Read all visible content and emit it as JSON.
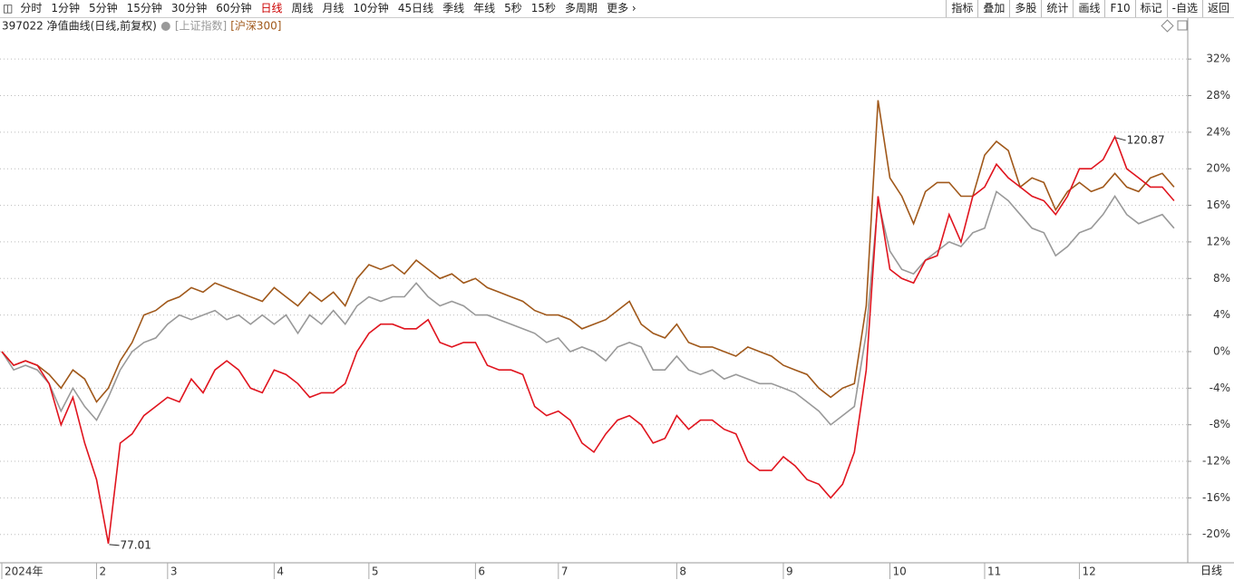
{
  "toolbar": {
    "periods": [
      "分时",
      "1分钟",
      "5分钟",
      "15分钟",
      "30分钟",
      "60分钟",
      "日线",
      "周线",
      "月线",
      "10分钟",
      "45日线",
      "季线",
      "年线",
      "5秒",
      "15秒",
      "多周期",
      "更多"
    ],
    "tools": [
      "指标",
      "叠加",
      "多股",
      "统计",
      "画线",
      "F10",
      "标记",
      "-自选",
      "返回"
    ],
    "period_label": "日线"
  },
  "chart_data": {
    "type": "line",
    "categories": [
      "2024年",
      null,
      null,
      null,
      null,
      null,
      null,
      null,
      "2",
      null,
      null,
      null,
      null,
      null,
      "3",
      null,
      null,
      null,
      null,
      null,
      null,
      null,
      null,
      "4",
      null,
      null,
      null,
      null,
      null,
      null,
      null,
      "5",
      null,
      null,
      null,
      null,
      null,
      null,
      null,
      null,
      "6",
      null,
      null,
      null,
      null,
      null,
      null,
      "7",
      null,
      null,
      null,
      null,
      null,
      null,
      null,
      null,
      null,
      "8",
      null,
      null,
      null,
      null,
      null,
      null,
      null,
      null,
      "9",
      null,
      null,
      null,
      null,
      null,
      null,
      null,
      null,
      "10",
      null,
      null,
      null,
      null,
      null,
      null,
      null,
      "11",
      null,
      null,
      null,
      null,
      null,
      null,
      null,
      "12",
      null,
      null,
      null,
      null,
      null,
      null,
      null,
      null
    ],
    "series": [
      {
        "name": "397022 净值曲线(日线,前复权)",
        "color": "#e0141e",
        "values": [
          0,
          -1.5,
          -1,
          -1.5,
          -3.5,
          -8,
          -5,
          -10,
          -14,
          -21,
          -10,
          -9,
          -7,
          -6,
          -5,
          -5.5,
          -3,
          -4.5,
          -2,
          -1,
          -2,
          -4,
          -4.5,
          -2,
          -2.5,
          -3.5,
          -5,
          -4.5,
          -4.5,
          -3.5,
          0,
          2,
          3,
          3,
          2.5,
          2.5,
          3.5,
          1,
          0.5,
          1,
          1,
          -1.5,
          -2,
          -2,
          -2.5,
          -6,
          -7,
          -6.5,
          -7.5,
          -10,
          -11,
          -9,
          -7.5,
          -7,
          -8,
          -10,
          -9.5,
          -7,
          -8.5,
          -7.5,
          -7.5,
          -8.5,
          -9,
          -12,
          -13,
          -13,
          -11.5,
          -12.5,
          -14,
          -14.5,
          -16,
          -14.5,
          -11,
          -2,
          17,
          9,
          8,
          7.5,
          10,
          10.5,
          15,
          12,
          17,
          18,
          20.5,
          19,
          18,
          17,
          16.5,
          15,
          17,
          20,
          20,
          21,
          23.5,
          20,
          19,
          18,
          18,
          16.5
        ]
      },
      {
        "name": "[上证指数]",
        "color": "#999999",
        "values": [
          0,
          -2,
          -1.5,
          -2,
          -3.5,
          -6.5,
          -4,
          -6,
          -7.5,
          -5,
          -2,
          0,
          1,
          1.5,
          3,
          4,
          3.5,
          4,
          4.5,
          3.5,
          4,
          3,
          4,
          3,
          4,
          2,
          4,
          3,
          4.5,
          3,
          5,
          6,
          5.5,
          6,
          6,
          7.5,
          6,
          5,
          5.5,
          5,
          4,
          4,
          3.5,
          3,
          2.5,
          2,
          1,
          1.5,
          0,
          0.5,
          0,
          -1,
          0.5,
          1,
          0.5,
          -2,
          -2,
          -0.5,
          -2,
          -2.5,
          -2,
          -3,
          -2.5,
          -3,
          -3.5,
          -3.5,
          -4,
          -4.5,
          -5.5,
          -6.5,
          -8,
          -7,
          -6,
          2,
          16.5,
          11,
          9,
          8.5,
          10,
          11,
          12,
          11.5,
          13,
          13.5,
          17.5,
          16.5,
          15,
          13.5,
          13,
          10.5,
          11.5,
          13,
          13.5,
          15,
          17,
          15,
          14,
          14.5,
          15,
          13.5
        ]
      },
      {
        "name": "[沪深300]",
        "color": "#a0581a",
        "values": [
          0,
          -1.5,
          -1,
          -1.5,
          -2.5,
          -4,
          -2,
          -3,
          -5.5,
          -4,
          -1,
          1,
          4,
          4.5,
          5.5,
          6,
          7,
          6.5,
          7.5,
          7,
          6.5,
          6,
          5.5,
          7,
          6,
          5,
          6.5,
          5.5,
          6.5,
          5,
          8,
          9.5,
          9,
          9.5,
          8.5,
          10,
          9,
          8,
          8.5,
          7.5,
          8,
          7,
          6.5,
          6,
          5.5,
          4.5,
          4,
          4,
          3.5,
          2.5,
          3,
          3.5,
          4.5,
          5.5,
          3,
          2,
          1.5,
          3,
          1,
          0.5,
          0.5,
          0,
          -0.5,
          0.5,
          0,
          -0.5,
          -1.5,
          -2,
          -2.5,
          -4,
          -5,
          -4,
          -3.5,
          5,
          27.5,
          19,
          17,
          14,
          17.5,
          18.5,
          18.5,
          17,
          17,
          21.5,
          23,
          22,
          18,
          19,
          18.5,
          15.5,
          17.5,
          18.5,
          17.5,
          18,
          19.5,
          18,
          17.5,
          19,
          19.5,
          18
        ]
      }
    ],
    "annotations": [
      "77.01",
      "120.87"
    ],
    "ylim": [
      -23,
      34
    ],
    "yticks": [
      {
        "value": 32,
        "label": "32%"
      },
      {
        "value": 28,
        "label": "28%"
      },
      {
        "value": 24,
        "label": "24%"
      },
      {
        "value": 20,
        "label": "20%"
      },
      {
        "value": 16,
        "label": "16%"
      },
      {
        "value": 12,
        "label": "12%"
      },
      {
        "value": 8,
        "label": "8%"
      },
      {
        "value": 4,
        "label": "4%"
      },
      {
        "value": 0,
        "label": "0%"
      },
      {
        "value": -4,
        "label": "-4%"
      },
      {
        "value": -8,
        "label": "-8%"
      },
      {
        "value": -12,
        "label": "-12%"
      },
      {
        "value": -16,
        "label": "-16%"
      },
      {
        "value": -20,
        "label": "-20%"
      }
    ],
    "grid": true
  }
}
